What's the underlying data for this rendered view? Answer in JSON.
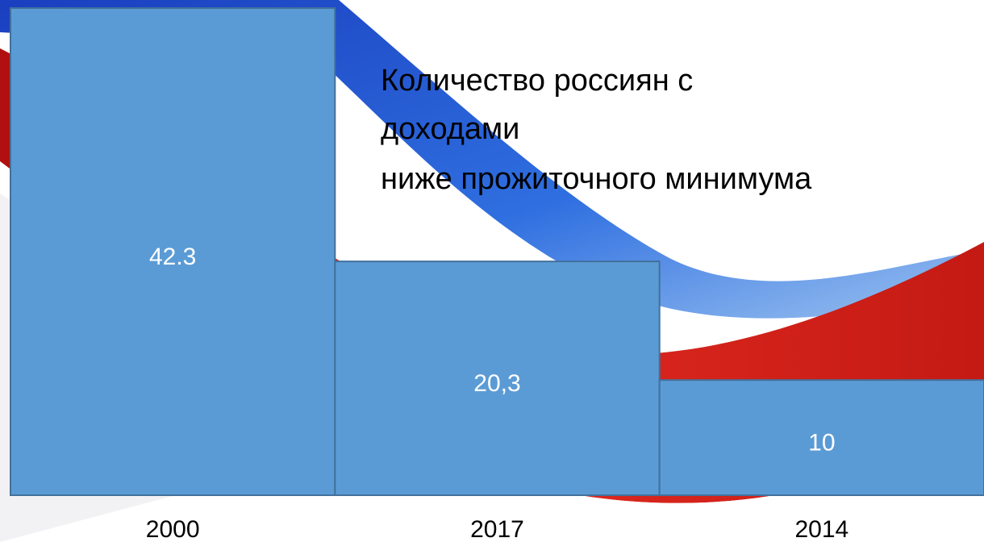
{
  "chart_data": {
    "type": "bar",
    "title": [
      "Количество россиян с",
      "доходами",
      "ниже прожиточного минимума"
    ],
    "categories": [
      "2000",
      "2017",
      "2014"
    ],
    "values": [
      42.3,
      20.3,
      10
    ],
    "value_labels": [
      "42.3",
      "20,3",
      "10"
    ],
    "color": "#5b9bd5"
  }
}
